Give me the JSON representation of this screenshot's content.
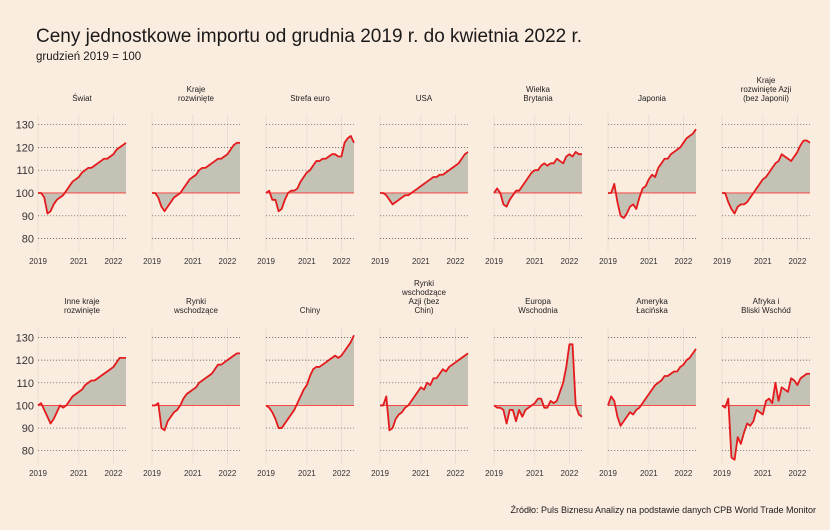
{
  "title": "Ceny jednostkowe importu od grudnia 2019 r. do kwietnia 2022 r.",
  "subtitle": "grudzień 2019 = 100",
  "source": "Źródło: Puls Biznesu Analizy na podstawie danych CPB World Trade Monitor",
  "colors": {
    "line": "#e41a1c",
    "area": "#c4c1b5",
    "baseline": "#ff3333",
    "grid": "#555555",
    "background": "#fbece0"
  },
  "chart_data": {
    "type": "area",
    "baseline": 100,
    "ylim": [
      75,
      132
    ],
    "yticks": [
      80,
      90,
      100,
      110,
      120,
      130
    ],
    "xlim": [
      2019.917,
      2022.25
    ],
    "xticks": [
      {
        "value": 2019.917,
        "label": "2019"
      },
      {
        "value": 2021.0,
        "label": "2021"
      },
      {
        "value": 2021.917,
        "label": "2022"
      }
    ],
    "grid": "horizontal dotted",
    "panels": [
      {
        "name": "Świat",
        "title_lines": [
          "Świat"
        ],
        "x_start": 2019.917,
        "x_step": 0.0833,
        "values": [
          100,
          100,
          98,
          91,
          92,
          95,
          97,
          98,
          99,
          101,
          103,
          105,
          106,
          107,
          109,
          110,
          111,
          111,
          112,
          113,
          114,
          115,
          115,
          116,
          117,
          119,
          120,
          121,
          122
        ]
      },
      {
        "name": "Kraje rozwinięte",
        "title_lines": [
          "Kraje",
          "rozwinięte"
        ],
        "x_start": 2019.917,
        "x_step": 0.0833,
        "values": [
          100,
          100,
          98,
          94,
          92,
          94,
          96,
          98,
          99,
          100,
          102,
          104,
          106,
          107,
          108,
          110,
          111,
          111,
          112,
          113,
          114,
          115,
          115,
          116,
          117,
          119,
          121,
          122,
          122
        ]
      },
      {
        "name": "Strefa euro",
        "title_lines": [
          "Strefa euro"
        ],
        "x_start": 2019.917,
        "x_step": 0.0833,
        "values": [
          100,
          101,
          97,
          97,
          92,
          93,
          97,
          100,
          101,
          101,
          102,
          105,
          107,
          109,
          110,
          112,
          114,
          114,
          115,
          115,
          116,
          117,
          117,
          116,
          116,
          122,
          124,
          125,
          122
        ]
      },
      {
        "name": "USA",
        "title_lines": [
          "USA"
        ],
        "x_start": 2019.917,
        "x_step": 0.0833,
        "values": [
          100,
          100,
          99,
          97,
          95,
          96,
          97,
          98,
          99,
          99,
          100,
          101,
          102,
          103,
          104,
          105,
          106,
          107,
          107,
          108,
          108,
          109,
          110,
          111,
          112,
          113,
          115,
          117,
          118
        ]
      },
      {
        "name": "Wielka Brytania",
        "title_lines": [
          "Wielka",
          "Brytania"
        ],
        "x_start": 2019.917,
        "x_step": 0.0833,
        "values": [
          100,
          102,
          100,
          95,
          94,
          97,
          99,
          101,
          101,
          103,
          105,
          107,
          109,
          110,
          110,
          112,
          113,
          112,
          113,
          113,
          115,
          114,
          113,
          116,
          117,
          116,
          118,
          117,
          117
        ]
      },
      {
        "name": "Japonia",
        "title_lines": [
          "Japonia"
        ],
        "x_start": 2019.917,
        "x_step": 0.0833,
        "values": [
          100,
          100,
          104,
          96,
          90,
          89,
          91,
          94,
          95,
          93,
          98,
          102,
          103,
          106,
          108,
          107,
          111,
          113,
          115,
          115,
          117,
          118,
          119,
          120,
          122,
          124,
          125,
          126,
          128
        ]
      },
      {
        "name": "Kraje rozwinięte Azji (bez Japonii)",
        "title_lines": [
          "Kraje",
          "rozwinięte Azji",
          "(bez Japonii)"
        ],
        "x_start": 2019.917,
        "x_step": 0.0833,
        "values": [
          100,
          100,
          96,
          93,
          91,
          94,
          95,
          95,
          96,
          98,
          100,
          102,
          104,
          106,
          107,
          109,
          111,
          113,
          114,
          117,
          116,
          115,
          114,
          116,
          118,
          121,
          123,
          123,
          122
        ]
      },
      {
        "name": "Inne kraje rozwinięte",
        "title_lines": [
          "Inne kraje",
          "rozwinięte"
        ],
        "x_start": 2019.917,
        "x_step": 0.0833,
        "values": [
          100,
          101,
          98,
          95,
          92,
          94,
          97,
          100,
          99,
          100,
          102,
          104,
          105,
          106,
          107,
          109,
          110,
          111,
          111,
          112,
          113,
          114,
          115,
          116,
          117,
          119,
          121,
          121,
          121
        ]
      },
      {
        "name": "Rynki wschodzące",
        "title_lines": [
          "Rynki",
          "wschodzące"
        ],
        "x_start": 2019.917,
        "x_step": 0.0833,
        "values": [
          100,
          100,
          101,
          90,
          89,
          93,
          95,
          97,
          98,
          100,
          103,
          105,
          106,
          107,
          108,
          110,
          111,
          112,
          113,
          114,
          116,
          118,
          118,
          119,
          120,
          121,
          122,
          123,
          123
        ]
      },
      {
        "name": "Chiny",
        "title_lines": [
          "Chiny"
        ],
        "x_start": 2019.917,
        "x_step": 0.0833,
        "values": [
          100,
          99,
          97,
          94,
          90,
          90,
          92,
          94,
          96,
          98,
          101,
          104,
          107,
          109,
          113,
          116,
          117,
          117,
          118,
          119,
          120,
          121,
          122,
          121,
          122,
          124,
          126,
          128,
          131
        ]
      },
      {
        "name": "Rynki wschodzące Azji (bez Chin)",
        "title_lines": [
          "Rynki",
          "wschodzące",
          "Azji (bez",
          "Chin)"
        ],
        "x_start": 2019.917,
        "x_step": 0.0833,
        "values": [
          100,
          100,
          104,
          89,
          90,
          94,
          96,
          97,
          99,
          100,
          102,
          104,
          106,
          108,
          107,
          110,
          109,
          112,
          112,
          114,
          116,
          115,
          117,
          118,
          119,
          120,
          121,
          122,
          123
        ]
      },
      {
        "name": "Europa Wschodnia",
        "title_lines": [
          "Europa",
          "Wschodnia"
        ],
        "x_start": 2019.917,
        "x_step": 0.0833,
        "values": [
          100,
          99,
          99,
          98,
          92,
          98,
          98,
          93,
          98,
          95,
          98,
          99,
          100,
          101,
          103,
          103,
          99,
          99,
          102,
          101,
          102,
          106,
          110,
          117,
          127,
          127,
          100,
          96,
          95
        ]
      },
      {
        "name": "Ameryka Łacińska",
        "title_lines": [
          "Ameryka",
          "Łacińska"
        ],
        "x_start": 2019.917,
        "x_step": 0.0833,
        "values": [
          100,
          104,
          102,
          95,
          91,
          93,
          95,
          97,
          96,
          98,
          99,
          101,
          103,
          105,
          107,
          109,
          110,
          111,
          113,
          113,
          114,
          115,
          115,
          117,
          118,
          120,
          121,
          123,
          125
        ]
      },
      {
        "name": "Afryka i Bliski Wschód",
        "title_lines": [
          "Afryka i",
          "Bliski Wschód"
        ],
        "x_start": 2019.917,
        "x_step": 0.0833,
        "values": [
          100,
          99,
          103,
          77,
          76,
          86,
          83,
          88,
          92,
          91,
          93,
          98,
          97,
          96,
          102,
          103,
          101,
          110,
          102,
          108,
          107,
          106,
          112,
          111,
          109,
          112,
          113,
          114,
          114
        ]
      }
    ]
  }
}
